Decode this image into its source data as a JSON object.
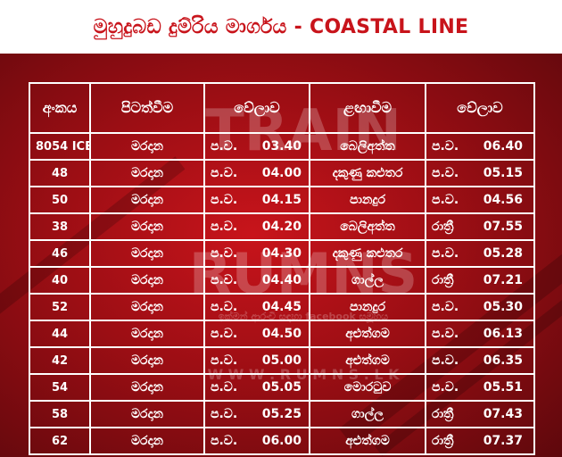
{
  "title": "මුහුදුබඩ දුම්රිය මාර්ගය - COASTAL LINE",
  "watermark": {
    "line1": "TRAIN",
    "line2": "RUMNS",
    "line3": "ඉක්මන් ආරංචි සඳහා facebook සමූහය",
    "line4": "W W W . R U M N S . L K"
  },
  "table": {
    "headers": [
      "අංකය",
      "පිටත්වීම",
      "වේලාව",
      "ළඟාවීම",
      "වේලාව"
    ],
    "rows": [
      {
        "no": "8054 ICE",
        "dep": "මරදාන",
        "dep_prefix": "ප.ව.",
        "dep_time": "03.40",
        "arr": "බෙලිඅත්ත",
        "arr_prefix": "ප.ව.",
        "arr_time": "06.40"
      },
      {
        "no": "48",
        "dep": "මරදාන",
        "dep_prefix": "ප.ව.",
        "dep_time": "04.00",
        "arr": "දකුණු කළුතර",
        "arr_prefix": "ප.ව.",
        "arr_time": "05.15"
      },
      {
        "no": "50",
        "dep": "මරදාන",
        "dep_prefix": "ප.ව.",
        "dep_time": "04.15",
        "arr": "පානදුර",
        "arr_prefix": "ප.ව.",
        "arr_time": "04.56"
      },
      {
        "no": "38",
        "dep": "මරදාන",
        "dep_prefix": "ප.ව.",
        "dep_time": "04.20",
        "arr": "බෙලිඅත්ත",
        "arr_prefix": "රාත්‍රී",
        "arr_time": "07.55"
      },
      {
        "no": "46",
        "dep": "මරදාන",
        "dep_prefix": "ප.ව.",
        "dep_time": "04.30",
        "arr": "දකුණු කළුතර",
        "arr_prefix": "ප.ව.",
        "arr_time": "05.28"
      },
      {
        "no": "40",
        "dep": "මරදාන",
        "dep_prefix": "ප.ව.",
        "dep_time": "04.40",
        "arr": "ගාල්ල",
        "arr_prefix": "රාත්‍රී",
        "arr_time": "07.21"
      },
      {
        "no": "52",
        "dep": "මරදාන",
        "dep_prefix": "ප.ව.",
        "dep_time": "04.45",
        "arr": "පානදුර",
        "arr_prefix": "ප.ව.",
        "arr_time": "05.30"
      },
      {
        "no": "44",
        "dep": "මරදාන",
        "dep_prefix": "ප.ව.",
        "dep_time": "04.50",
        "arr": "අළුත්ගම",
        "arr_prefix": "ප.ව.",
        "arr_time": "06.13"
      },
      {
        "no": "42",
        "dep": "මරදාන",
        "dep_prefix": "ප.ව.",
        "dep_time": "05.00",
        "arr": "අළුත්ගම",
        "arr_prefix": "ප.ව.",
        "arr_time": "06.35"
      },
      {
        "no": "54",
        "dep": "මරදාන",
        "dep_prefix": "ප.ව.",
        "dep_time": "05.05",
        "arr": "මොරටුව",
        "arr_prefix": "ප.ව.",
        "arr_time": "05.51"
      },
      {
        "no": "58",
        "dep": "මරදාන",
        "dep_prefix": "ප.ව.",
        "dep_time": "05.25",
        "arr": "ගාල්ල",
        "arr_prefix": "රාත්‍රී",
        "arr_time": "07.43"
      },
      {
        "no": "62",
        "dep": "මරදාන",
        "dep_prefix": "ප.ව.",
        "dep_time": "06.00",
        "arr": "අළුත්ගම",
        "arr_prefix": "රාත්‍රී",
        "arr_time": "07.37"
      }
    ]
  },
  "colors": {
    "header_text": "#c8141b",
    "background": "#9c0e14",
    "grid": "#ffffff"
  }
}
